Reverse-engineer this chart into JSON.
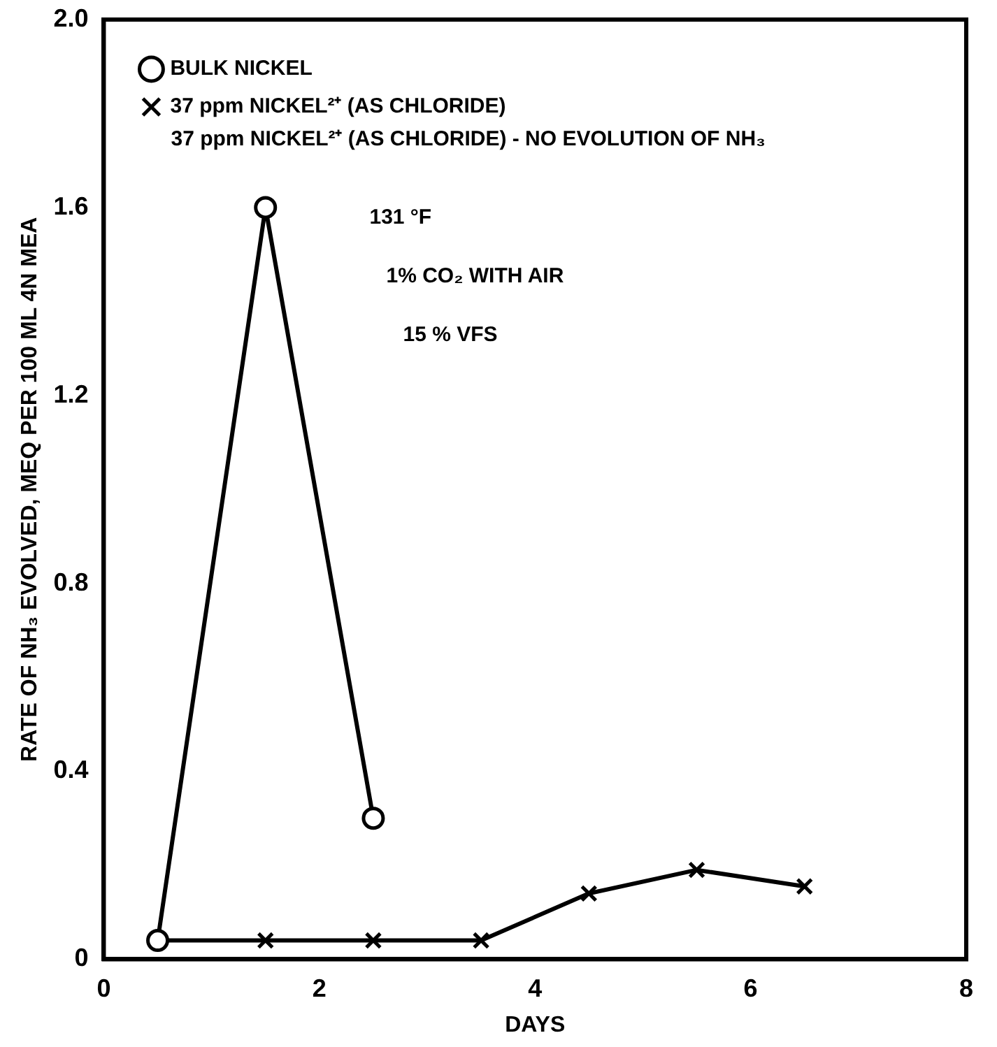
{
  "chart_data": {
    "type": "line",
    "xlabel": "DAYS",
    "ylabel": "RATE OF NH₃ EVOLVED, MEQ PER 100 ML 4N MEA",
    "xlim": [
      0,
      8
    ],
    "xticks": [
      0,
      2,
      4,
      6,
      8
    ],
    "ylim": [
      0,
      2
    ],
    "yticks": [
      0,
      0.4,
      0.8,
      1.2,
      1.6,
      {
        "value": 2,
        "label": "2.0"
      }
    ],
    "grid": false,
    "legend": "top left",
    "line_style": "solid",
    "series": [
      {
        "name": "BULK NICKEL",
        "color": "#000000",
        "marker": "circle",
        "x": [
          0.5,
          1.5,
          2.5
        ],
        "values": [
          0.04,
          1.6,
          0.3
        ]
      },
      {
        "name": "37 ppm NICKEL²⁺ (AS CHLORIDE)",
        "color": "#000000",
        "marker": "cross",
        "x": [
          0.5,
          1.5,
          2.5,
          3.5,
          4.5,
          5.5,
          6.5
        ],
        "values": [
          0.04,
          0.04,
          0.04,
          0.04,
          0.14,
          0.19,
          0.155
        ]
      }
    ],
    "annotations": [
      "37 ppm NICKEL²⁺ (AS CHLORIDE) - NO EVOLUTION OF NH₃",
      "131 °F",
      "1% CO₂ WITH AIR",
      "15 % VFS"
    ]
  }
}
